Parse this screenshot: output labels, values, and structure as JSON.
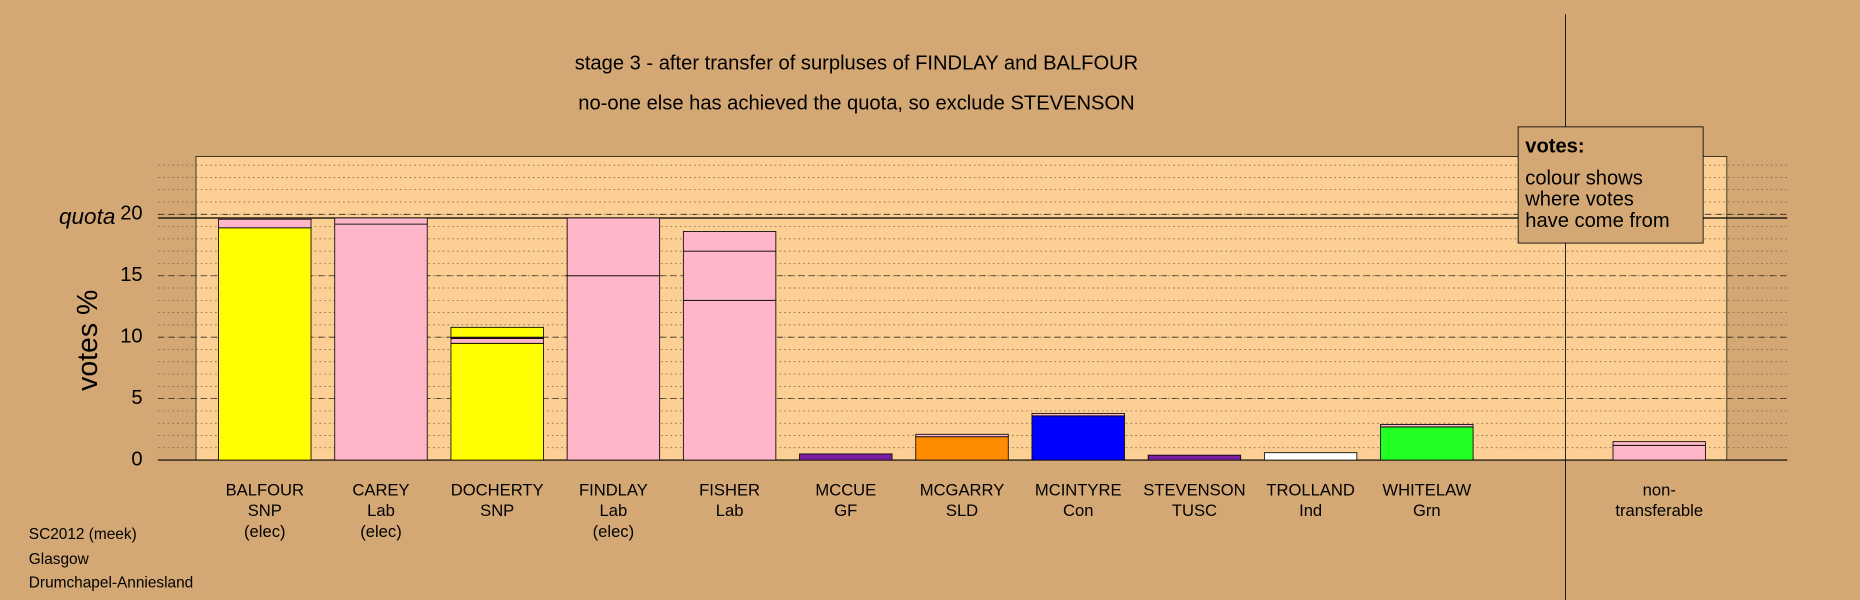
{
  "chart_data": {
    "type": "stacked-bar",
    "title": "stage 3 - after transfer of surpluses of FINDLAY and BALFOUR",
    "subtitle": "no-one else has achieved the quota, so exclude STEVENSON",
    "y_label": "votes %",
    "ylim": [
      0,
      24.7
    ],
    "yticks": [
      0,
      5,
      10,
      15,
      20
    ],
    "minor_grid_step": 1,
    "grid": true,
    "quota": {
      "label": "quota",
      "value": 19.7
    },
    "legend": {
      "title": "votes:",
      "lines": [
        "colour shows",
        "where votes",
        "have come from"
      ]
    },
    "footer": [
      "SC2012 (meek)",
      "Glasgow",
      "Drumchapel-Anniesland"
    ],
    "bars": [
      {
        "label": [
          "BALFOUR",
          "SNP",
          "(elec)"
        ],
        "segments": [
          {
            "value": 18.9,
            "color": "#ffff00"
          },
          {
            "value": 0.7,
            "color": "#ffb6c8"
          }
        ]
      },
      {
        "label": [
          "CAREY",
          "Lab",
          "(elec)"
        ],
        "segments": [
          {
            "value": 19.2,
            "color": "#ffb6c8"
          },
          {
            "value": 0.5,
            "color": "#ffb6c8"
          }
        ]
      },
      {
        "label": [
          "DOCHERTY",
          "SNP"
        ],
        "segments": [
          {
            "value": 9.5,
            "color": "#ffff00"
          },
          {
            "value": 0.4,
            "color": "#ffb6c8"
          },
          {
            "value": 0.1,
            "color": "#7b1fa2"
          },
          {
            "value": 0.8,
            "color": "#ffff00"
          }
        ]
      },
      {
        "label": [
          "FINDLAY",
          "Lab",
          "(elec)"
        ],
        "segments": [
          {
            "value": 15.0,
            "color": "#ffb6c8"
          },
          {
            "value": 4.7,
            "color": "#ffb6c8"
          }
        ]
      },
      {
        "label": [
          "FISHER",
          "Lab"
        ],
        "segments": [
          {
            "value": 13.0,
            "color": "#ffb6c8"
          },
          {
            "value": 4.0,
            "color": "#ffb6c8"
          },
          {
            "value": 1.6,
            "color": "#ffb6c8"
          }
        ]
      },
      {
        "label": [
          "MCCUE",
          "GF"
        ],
        "segments": [
          {
            "value": 0.5,
            "color": "#7b1fa2"
          }
        ]
      },
      {
        "label": [
          "MCGARRY",
          "SLD"
        ],
        "segments": [
          {
            "value": 1.9,
            "color": "#ff8c00"
          },
          {
            "value": 0.2,
            "color": "#ffb6c8"
          }
        ]
      },
      {
        "label": [
          "MCINTYRE",
          "Con"
        ],
        "segments": [
          {
            "value": 3.6,
            "color": "#0000ff"
          },
          {
            "value": 0.2,
            "color": "#ffb6c8"
          }
        ]
      },
      {
        "label": [
          "STEVENSON",
          "TUSC"
        ],
        "segments": [
          {
            "value": 0.4,
            "color": "#7b1fa2"
          }
        ]
      },
      {
        "label": [
          "TROLLAND",
          "Ind"
        ],
        "segments": [
          {
            "value": 0.6,
            "color": "#ffffff"
          }
        ]
      },
      {
        "label": [
          "WHITELAW",
          "Grn"
        ],
        "segments": [
          {
            "value": 2.7,
            "color": "#22ff22"
          },
          {
            "value": 0.2,
            "color": "#ffb6c8"
          }
        ]
      },
      {
        "label": [
          "non-",
          "transferable"
        ],
        "separated": true,
        "segments": [
          {
            "value": 1.2,
            "color": "#ffb6c8"
          },
          {
            "value": 0.3,
            "color": "#ffb6c8"
          }
        ]
      }
    ]
  }
}
